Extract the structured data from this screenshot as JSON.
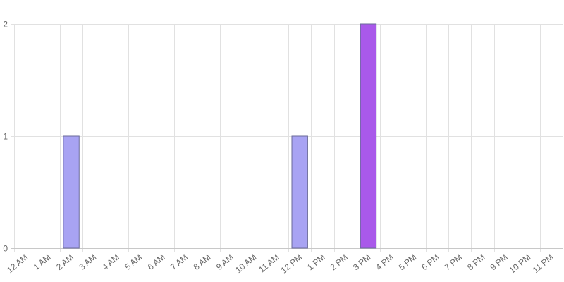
{
  "chart_data": {
    "type": "bar",
    "title": "",
    "xlabel": "",
    "ylabel": "",
    "categories": [
      "12 AM",
      "1 AM",
      "2 AM",
      "3 AM",
      "4 AM",
      "5 AM",
      "6 AM",
      "7 AM",
      "8 AM",
      "9 AM",
      "10 AM",
      "11 AM",
      "12 PM",
      "1 PM",
      "2 PM",
      "3 PM",
      "4 PM",
      "5 PM",
      "6 PM",
      "7 PM",
      "8 PM",
      "9 PM",
      "10 PM",
      "11 PM"
    ],
    "values": [
      0,
      0,
      1,
      0,
      0,
      0,
      0,
      0,
      0,
      0,
      0,
      0,
      1,
      0,
      0,
      2,
      0,
      0,
      0,
      0,
      0,
      0,
      0,
      0
    ],
    "ylim": [
      0,
      2
    ],
    "yticks": [
      "0",
      "1",
      "2"
    ],
    "grid": true,
    "legend": "none",
    "colors": {
      "bar_low": "#a8a3f3",
      "bar_high": "#a959ea",
      "bar_border": "#6a6a9a",
      "grid": "#e1e1e1",
      "tick_text": "#666666"
    }
  }
}
